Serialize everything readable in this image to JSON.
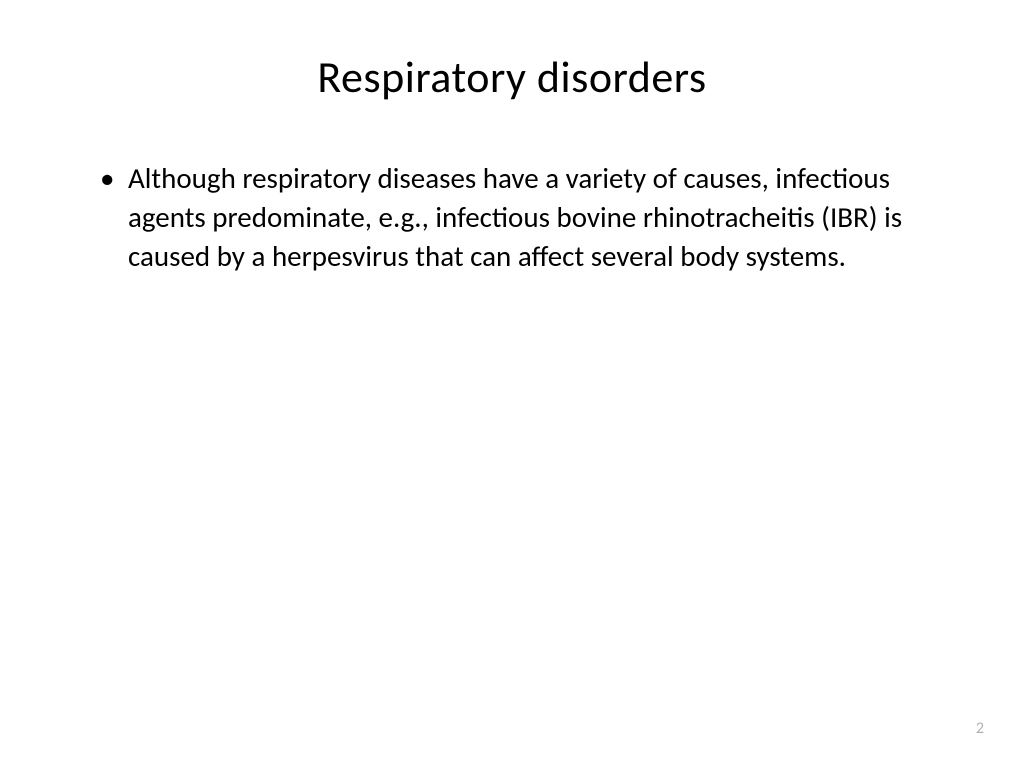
{
  "slide": {
    "title": "Respiratory disorders",
    "bullets": [
      "Although respiratory diseases have a variety of causes, infectious agents predominate, e.g., infectious bovine rhinotracheitis (IBR) is caused by a herpesvirus that can affect several body systems."
    ],
    "page_number": "2"
  },
  "styling": {
    "background_color": "#ffffff",
    "title_color": "#000000",
    "title_fontsize": 44,
    "body_color": "#000000",
    "body_fontsize": 29,
    "page_number_color": "#b0b0b0",
    "page_number_fontsize": 16,
    "font_family": "Calibri"
  }
}
